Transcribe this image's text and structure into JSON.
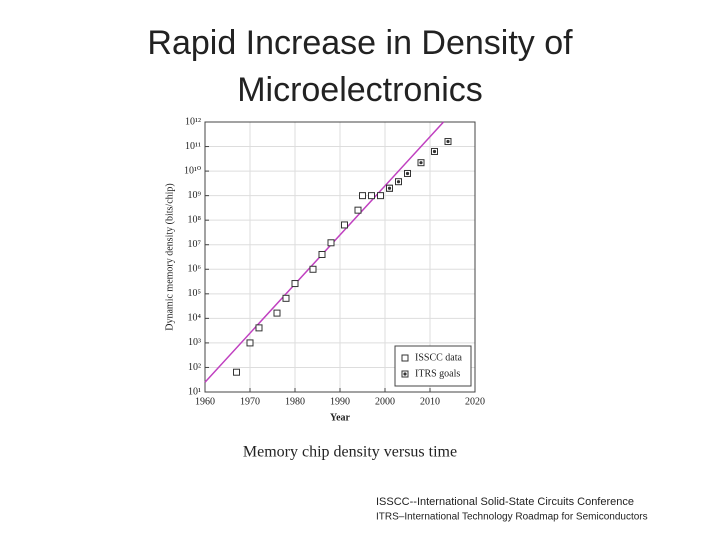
{
  "title_lines": [
    "Rapid Increase in Density of",
    "Microelectronics"
  ],
  "caption": "Memory chip density versus time",
  "notes": [
    "ISSCC--International Solid-State Circuits Conference",
    "ITRS–International Technology Roadmap for Semiconductors"
  ],
  "chart_data": {
    "type": "scatter",
    "x_label": "Year",
    "y_label": "Dynamic memory density (bits/chip)",
    "xlim": [
      1960,
      2020
    ],
    "xticks": [
      1960,
      1970,
      1980,
      1990,
      2000,
      2010,
      2020
    ],
    "ylim": [
      10,
      1000000000000
    ],
    "log_y": true,
    "yticks": [
      {
        "value": 10,
        "label": "10¹"
      },
      {
        "value": 100,
        "label": "10²"
      },
      {
        "value": 1000,
        "label": "10³"
      },
      {
        "value": 10000,
        "label": "10⁴"
      },
      {
        "value": 100000,
        "label": "10⁵"
      },
      {
        "value": 1000000,
        "label": "10⁶"
      },
      {
        "value": 10000000,
        "label": "10⁷"
      },
      {
        "value": 100000000,
        "label": "10⁸"
      },
      {
        "value": 1000000000,
        "label": "10⁹"
      },
      {
        "value": 10000000000,
        "label": "10¹⁰"
      },
      {
        "value": 100000000000,
        "label": "10¹¹"
      },
      {
        "value": 1000000000000,
        "label": "10¹²"
      }
    ],
    "grid": true,
    "legend": "lower right",
    "series": [
      {
        "name": "ISSCC data",
        "color": "#333333",
        "marker": "square",
        "x": [
          1967,
          1970,
          1972,
          1976,
          1978,
          1980,
          1984,
          1986,
          1988,
          1991,
          1994,
          1995,
          1997,
          1999,
          2001
        ],
        "values": [
          64,
          1000,
          4096,
          16384,
          65536,
          262144,
          1000000,
          4000000,
          12000000,
          64000000,
          256000000,
          1000000000,
          1000000000,
          1000000000,
          2000000000
        ]
      },
      {
        "name": "ITRS goals",
        "color": "#333333",
        "marker": "boxed-star",
        "x": [
          2001,
          2003,
          2005,
          2008,
          2011,
          2014
        ],
        "values": [
          2000000000,
          3700000000,
          8000000000,
          22000000000,
          63000000000,
          160000000000
        ]
      }
    ],
    "trend": {
      "color": "#c040c0",
      "x": [
        1960,
        2013
      ],
      "values": [
        25,
        1000000000000
      ]
    }
  }
}
